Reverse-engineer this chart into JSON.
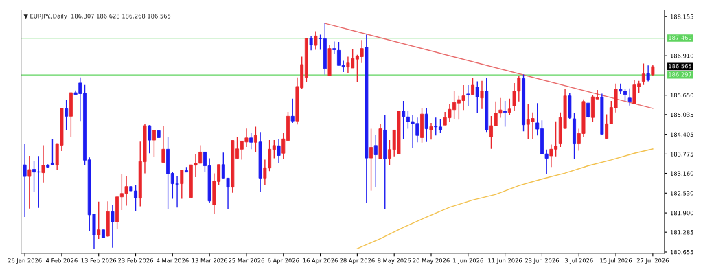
{
  "chart_data": {
    "type": "candlestick",
    "title": "▼ EURJPY.,Daily  186.307 186.628 186.268 186.565",
    "categories": [
      "26 Jan 2026",
      null,
      null,
      null,
      null,
      null,
      null,
      null,
      "4 Feb 2026",
      null,
      null,
      null,
      null,
      null,
      null,
      null,
      "13 Feb 2026",
      null,
      null,
      null,
      null,
      null,
      null,
      null,
      "23 Feb 2026",
      null,
      null,
      null,
      null,
      null,
      null,
      null,
      "4 Mar 2026",
      null,
      null,
      null,
      null,
      null,
      null,
      null,
      "13 Mar 2026",
      null,
      null,
      null,
      null,
      null,
      null,
      null,
      "25 Mar 2026",
      null,
      null,
      null,
      null,
      null,
      null,
      null,
      "6 Apr 2026",
      null,
      null,
      null,
      null,
      null,
      null,
      null,
      "16 Apr 2026",
      null,
      null,
      null,
      null,
      null,
      null,
      null,
      "28 Apr 2026",
      null,
      null,
      null,
      null,
      null,
      null,
      null,
      "8 May 2026",
      null,
      null,
      null,
      null,
      null,
      null,
      null,
      "20 May 2026",
      null,
      null,
      null,
      null,
      null,
      null,
      null,
      "1 Jun 2026",
      null,
      null,
      null,
      null,
      null,
      null,
      null,
      "11 Jun 2026",
      null,
      null,
      null,
      null,
      null,
      null,
      null,
      "23 Jun 2026",
      null,
      null,
      null,
      null,
      null,
      null,
      null,
      "3 Jul 2026",
      null,
      null,
      null,
      null,
      null,
      null,
      null,
      "15 Jul 2026",
      null,
      null,
      null,
      null,
      null,
      null,
      null,
      "27 Jul 2026"
    ],
    "ohlc": [
      [
        183.43,
        184.09,
        181.77,
        183.06
      ],
      [
        183.06,
        183.72,
        182.04,
        183.28
      ],
      [
        183.29,
        183.56,
        182.57,
        183.2
      ],
      [
        183.21,
        183.71,
        182.06,
        183.2
      ],
      [
        183.18,
        184.06,
        182.87,
        183.42
      ],
      [
        183.42,
        183.45,
        183.34,
        183.36
      ],
      [
        183.49,
        184.26,
        183.42,
        183.43
      ],
      [
        183.43,
        184.09,
        183.28,
        184.09
      ],
      [
        184.06,
        185.23,
        183.87,
        185.23
      ],
      [
        185.22,
        185.51,
        184.53,
        184.98
      ],
      [
        184.98,
        185.73,
        184.33,
        185.73
      ],
      [
        185.73,
        185.8,
        185.67,
        185.67
      ],
      [
        186.04,
        186.22,
        184.83,
        185.7
      ],
      [
        185.72,
        185.98,
        183.43,
        183.58
      ],
      [
        183.59,
        183.67,
        181.31,
        181.84
      ],
      [
        181.86,
        181.86,
        180.76,
        181.2
      ],
      [
        181.2,
        182.26,
        181.07,
        181.36
      ],
      [
        181.36,
        181.36,
        181.11,
        181.11
      ],
      [
        181.16,
        182.27,
        181.14,
        181.94
      ],
      [
        181.94,
        182.15,
        180.79,
        181.62
      ],
      [
        181.62,
        182.41,
        181.38,
        182.41
      ],
      [
        182.41,
        183.14,
        181.99,
        182.52
      ],
      [
        182.52,
        183.08,
        182.13,
        182.74
      ],
      [
        182.74,
        182.74,
        182.6,
        182.6
      ],
      [
        182.6,
        182.79,
        181.97,
        182.38
      ],
      [
        182.37,
        184.17,
        182.11,
        183.54
      ],
      [
        183.53,
        184.74,
        183.16,
        184.68
      ],
      [
        184.68,
        184.7,
        183.8,
        184.22
      ],
      [
        184.22,
        184.53,
        183.68,
        184.53
      ],
      [
        184.52,
        184.52,
        184.3,
        184.3
      ],
      [
        183.51,
        184.68,
        183.51,
        183.93
      ],
      [
        183.93,
        184.31,
        182.01,
        183.14
      ],
      [
        183.16,
        183.21,
        182.35,
        182.83
      ],
      [
        182.83,
        183.08,
        182.07,
        182.81
      ],
      [
        182.83,
        183.26,
        182.35,
        183.26
      ],
      [
        183.25,
        183.36,
        183.2,
        183.2
      ],
      [
        182.39,
        183.43,
        182.38,
        183.43
      ],
      [
        183.42,
        183.77,
        183.04,
        183.48
      ],
      [
        183.48,
        184.06,
        183.48,
        183.84
      ],
      [
        183.84,
        183.84,
        183.2,
        183.4
      ],
      [
        183.4,
        183.64,
        182.21,
        182.28
      ],
      [
        182.16,
        183.16,
        181.86,
        182.92
      ],
      [
        182.9,
        183.44,
        182.79,
        183.44
      ],
      [
        183.44,
        183.82,
        183.01,
        183.01
      ],
      [
        183.01,
        183.01,
        182.02,
        182.72
      ],
      [
        182.72,
        184.21,
        182.54,
        184.21
      ],
      [
        183.64,
        184.32,
        183.62,
        183.94
      ],
      [
        183.93,
        184.19,
        183.6,
        184.19
      ],
      [
        184.16,
        184.59,
        184.0,
        184.29
      ],
      [
        184.29,
        184.46,
        183.93,
        184.15
      ],
      [
        184.15,
        184.65,
        183.84,
        184.37
      ],
      [
        184.16,
        184.48,
        182.57,
        183.01
      ],
      [
        183.01,
        183.6,
        182.79,
        183.34
      ],
      [
        183.33,
        184.22,
        183.23,
        183.93
      ],
      [
        183.92,
        184.22,
        183.64,
        184.05
      ],
      [
        184.04,
        184.26,
        183.5,
        183.73
      ],
      [
        183.8,
        184.44,
        183.62,
        184.26
      ],
      [
        184.21,
        185.12,
        184.21,
        184.98
      ],
      [
        184.98,
        185.54,
        184.77,
        184.83
      ],
      [
        184.83,
        186.22,
        184.72,
        185.93
      ],
      [
        185.89,
        186.88,
        185.84,
        186.63
      ],
      [
        186.22,
        187.47,
        186.06,
        187.47
      ],
      [
        187.47,
        187.54,
        187.08,
        187.26
      ],
      [
        187.24,
        187.69,
        187.1,
        187.54
      ],
      [
        187.47,
        187.58,
        187.1,
        187.45
      ],
      [
        187.45,
        187.94,
        186.31,
        186.5
      ],
      [
        186.28,
        187.24,
        186.26,
        187.14
      ],
      [
        187.14,
        187.36,
        186.97,
        187.1
      ],
      [
        187.08,
        187.35,
        186.6,
        186.6
      ],
      [
        186.6,
        186.75,
        186.39,
        186.55
      ],
      [
        186.55,
        186.88,
        186.36,
        186.68
      ],
      [
        186.52,
        187.12,
        186.52,
        186.82
      ],
      [
        186.8,
        186.94,
        186.07,
        186.9
      ],
      [
        186.88,
        187.41,
        186.68,
        187.14
      ],
      [
        187.18,
        187.58,
        182.21,
        183.65
      ],
      [
        183.65,
        184.58,
        182.61,
        183.99
      ],
      [
        184.05,
        184.38,
        182.72,
        183.75
      ],
      [
        183.62,
        184.74,
        183.62,
        184.58
      ],
      [
        184.54,
        185.03,
        182.01,
        183.62
      ],
      [
        183.64,
        184.22,
        183.42,
        183.92
      ],
      [
        183.92,
        184.54,
        183.7,
        184.54
      ],
      [
        183.78,
        185.15,
        183.77,
        185.15
      ],
      [
        185.15,
        185.47,
        184.26,
        184.97
      ],
      [
        184.96,
        185.15,
        184.58,
        184.81
      ],
      [
        184.81,
        185.03,
        183.98,
        184.74
      ],
      [
        184.75,
        184.94,
        184.15,
        184.37
      ],
      [
        184.3,
        185.25,
        184.14,
        185.05
      ],
      [
        185.05,
        185.25,
        184.16,
        184.58
      ],
      [
        184.54,
        184.77,
        184.24,
        184.65
      ],
      [
        184.66,
        184.94,
        184.37,
        184.64
      ],
      [
        184.64,
        184.88,
        184.44,
        184.54
      ],
      [
        184.7,
        185.12,
        184.7,
        184.94
      ],
      [
        184.93,
        185.36,
        184.81,
        185.2
      ],
      [
        185.19,
        185.78,
        184.88,
        185.42
      ],
      [
        185.4,
        185.63,
        184.87,
        185.51
      ],
      [
        185.48,
        185.97,
        185.18,
        185.63
      ],
      [
        185.69,
        185.97,
        185.31,
        185.67
      ],
      [
        185.67,
        186.2,
        185.67,
        185.97
      ],
      [
        185.91,
        186.09,
        185.08,
        185.6
      ],
      [
        185.56,
        186.11,
        185.21,
        185.78
      ],
      [
        185.78,
        186.2,
        184.48,
        184.54
      ],
      [
        184.33,
        184.99,
        183.94,
        184.68
      ],
      [
        184.68,
        185.45,
        184.66,
        185.08
      ],
      [
        185.08,
        185.56,
        184.93,
        185.18
      ],
      [
        185.14,
        185.47,
        184.65,
        185.1
      ],
      [
        185.1,
        185.54,
        185.01,
        185.21
      ],
      [
        185.31,
        186.04,
        185.14,
        185.78
      ],
      [
        185.78,
        186.28,
        185.45,
        186.2
      ],
      [
        186.18,
        186.31,
        184.5,
        184.71
      ],
      [
        184.72,
        185.36,
        184.26,
        184.87
      ],
      [
        184.81,
        185.1,
        184.26,
        184.91
      ],
      [
        184.77,
        185.4,
        184.37,
        184.57
      ],
      [
        184.58,
        184.85,
        183.77,
        183.78
      ],
      [
        183.78,
        183.92,
        183.14,
        183.64
      ],
      [
        183.72,
        184.08,
        183.36,
        183.93
      ],
      [
        183.93,
        184.82,
        183.7,
        184.03
      ],
      [
        184.1,
        185.1,
        184.0,
        184.94
      ],
      [
        184.59,
        185.85,
        184.59,
        185.63
      ],
      [
        185.63,
        185.73,
        184.9,
        184.93
      ],
      [
        184.9,
        185.09,
        183.61,
        184.1
      ],
      [
        184.1,
        184.58,
        183.88,
        184.43
      ],
      [
        184.43,
        185.52,
        184.33,
        185.45
      ],
      [
        185.4,
        185.4,
        184.94,
        184.96
      ],
      [
        184.94,
        185.65,
        184.81,
        185.6
      ],
      [
        185.53,
        185.82,
        185.53,
        185.58
      ],
      [
        185.58,
        185.7,
        184.41,
        184.41
      ],
      [
        184.27,
        185.04,
        184.26,
        184.74
      ],
      [
        184.74,
        185.47,
        184.74,
        185.26
      ],
      [
        185.25,
        186.02,
        185.1,
        185.85
      ],
      [
        185.84,
        186.02,
        185.69,
        185.78
      ],
      [
        185.78,
        185.84,
        185.47,
        185.67
      ],
      [
        185.56,
        185.87,
        185.32,
        185.45
      ],
      [
        185.38,
        186.13,
        185.36,
        185.98
      ],
      [
        185.93,
        186.11,
        185.73,
        186.02
      ],
      [
        186.09,
        186.66,
        185.98,
        186.33
      ],
      [
        186.35,
        186.6,
        186.09,
        186.13
      ],
      [
        186.307,
        186.628,
        186.268,
        186.565
      ]
    ],
    "colors": [
      "#1c1cf0",
      "#e8262b",
      "#1c1cf0",
      "#1c1cf0",
      "#e8262b",
      "#1c1cf0",
      "#1c1cf0",
      "#e8262b",
      "#e8262b",
      "#1c1cf0",
      "#e8262b",
      "#1c1cf0",
      "#1c1cf0",
      "#1c1cf0",
      "#1c1cf0",
      "#1c1cf0",
      "#e8262b",
      "#1c1cf0",
      "#e8262b",
      "#1c1cf0",
      "#e8262b",
      "#e8262b",
      "#e8262b",
      "#1c1cf0",
      "#1c1cf0",
      "#e8262b",
      "#e8262b",
      "#1c1cf0",
      "#e8262b",
      "#1c1cf0",
      "#e8262b",
      "#1c1cf0",
      "#1c1cf0",
      "#1c1cf0",
      "#e8262b",
      "#1c1cf0",
      "#e8262b",
      "#e8262b",
      "#e8262b",
      "#1c1cf0",
      "#1c1cf0",
      "#e8262b",
      "#e8262b",
      "#1c1cf0",
      "#1c1cf0",
      "#e8262b",
      "#e8262b",
      "#e8262b",
      "#e8262b",
      "#1c1cf0",
      "#e8262b",
      "#1c1cf0",
      "#e8262b",
      "#e8262b",
      "#e8262b",
      "#1c1cf0",
      "#e8262b",
      "#e8262b",
      "#1c1cf0",
      "#e8262b",
      "#e8262b",
      "#e8262b",
      "#1c1cf0",
      "#e8262b",
      "#1c1cf0",
      "#1c1cf0",
      "#e8262b",
      "#1c1cf0",
      "#1c1cf0",
      "#1c1cf0",
      "#e8262b",
      "#e8262b",
      "#e8262b",
      "#e8262b",
      "#1c1cf0",
      "#e8262b",
      "#1c1cf0",
      "#e8262b",
      "#1c1cf0",
      "#e8262b",
      "#e8262b",
      "#e8262b",
      "#1c1cf0",
      "#1c1cf0",
      "#1c1cf0",
      "#1c1cf0",
      "#e8262b",
      "#1c1cf0",
      "#e8262b",
      "#1c1cf0",
      "#1c1cf0",
      "#e8262b",
      "#e8262b",
      "#e8262b",
      "#e8262b",
      "#e8262b",
      "#1c1cf0",
      "#e8262b",
      "#1c1cf0",
      "#e8262b",
      "#1c1cf0",
      "#e8262b",
      "#e8262b",
      "#e8262b",
      "#1c1cf0",
      "#e8262b",
      "#e8262b",
      "#e8262b",
      "#1c1cf0",
      "#e8262b",
      "#e8262b",
      "#1c1cf0",
      "#1c1cf0",
      "#1c1cf0",
      "#e8262b",
      "#e8262b",
      "#e8262b",
      "#e8262b",
      "#1c1cf0",
      "#1c1cf0",
      "#e8262b",
      "#e8262b",
      "#1c1cf0",
      "#e8262b",
      "#e8262b",
      "#1c1cf0",
      "#e8262b",
      "#e8262b",
      "#e8262b",
      "#1c1cf0",
      "#1c1cf0",
      "#1c1cf0",
      "#e8262b",
      "#e8262b",
      "#e8262b",
      "#1c1cf0",
      "#e8262b"
    ],
    "series": [
      {
        "type": "line",
        "color": "#e86a6a",
        "values": [
          null,
          null,
          null,
          null,
          null,
          null,
          null,
          null,
          null,
          null,
          null,
          null,
          null,
          null,
          null,
          null,
          null,
          null,
          null,
          null,
          null,
          null,
          null,
          null,
          null,
          null,
          null,
          null,
          null,
          null,
          null,
          null,
          null,
          null,
          null,
          null,
          null,
          null,
          null,
          null,
          null,
          null,
          null,
          null,
          null,
          null,
          null,
          null,
          null,
          null,
          null,
          null,
          null,
          null,
          null,
          null,
          null,
          null,
          null,
          null,
          null,
          null,
          null,
          null,
          null,
          187.94,
          null,
          null,
          null,
          null,
          null,
          null,
          null,
          null,
          null,
          null,
          null,
          null,
          null,
          null,
          null,
          null,
          null,
          null,
          null,
          null,
          null,
          null,
          null,
          null,
          null,
          null,
          null,
          null,
          null,
          null,
          null,
          null,
          null,
          null,
          null,
          null,
          null,
          null,
          null,
          null,
          null,
          null,
          null,
          null,
          null,
          null,
          null,
          null,
          null,
          null,
          null,
          null,
          null,
          null,
          null,
          null,
          null,
          null,
          null,
          null,
          null,
          null,
          null,
          null,
          null,
          null,
          null,
          null,
          null,
          null,
          185.23
        ]
      },
      {
        "type": "line",
        "color": "#f2c14e",
        "values": [
          null,
          null,
          null,
          null,
          null,
          null,
          null,
          null,
          null,
          null,
          null,
          null,
          null,
          null,
          null,
          null,
          null,
          null,
          null,
          null,
          null,
          null,
          null,
          null,
          null,
          null,
          null,
          null,
          null,
          null,
          null,
          null,
          null,
          null,
          null,
          null,
          null,
          null,
          null,
          null,
          null,
          null,
          null,
          null,
          null,
          null,
          null,
          null,
          null,
          null,
          null,
          null,
          null,
          null,
          null,
          null,
          null,
          null,
          null,
          null,
          null,
          null,
          null,
          null,
          null,
          null,
          null,
          null,
          null,
          null,
          null,
          null,
          180.76,
          null,
          null,
          null,
          null,
          181.08,
          null,
          null,
          null,
          null,
          181.44,
          null,
          null,
          null,
          null,
          181.77,
          null,
          null,
          null,
          null,
          182.08,
          null,
          null,
          null,
          null,
          182.31,
          null,
          null,
          null,
          null,
          182.49,
          null,
          null,
          null,
          null,
          182.77,
          null,
          null,
          null,
          null,
          182.98,
          null,
          null,
          null,
          null,
          183.17,
          null,
          null,
          null,
          null,
          183.4,
          null,
          null,
          null,
          null,
          183.59,
          null,
          null,
          null,
          null,
          183.8,
          null,
          null,
          null,
          183.94
        ]
      }
    ],
    "ylim": [
      180.61,
      188.36
    ],
    "yticks": [
      188.155,
      {
        "value": 186.91,
        "label": "186.910"
      },
      {
        "value": 185.65,
        "label": "185.650"
      },
      185.035,
      184.405,
      183.775,
      {
        "value": 183.16,
        "label": "183.160"
      },
      {
        "value": 182.53,
        "label": "182.530"
      },
      {
        "value": 181.9,
        "label": "181.900"
      },
      181.285,
      180.655
    ],
    "ref_lines": [
      {
        "axis": "y",
        "value": 187.469,
        "label": "187.469",
        "color": "#5fd35f"
      },
      {
        "axis": "y",
        "value": 186.297,
        "label": "186.297",
        "color": "#5fd35f"
      }
    ],
    "annotations": [
      "186.565"
    ]
  }
}
